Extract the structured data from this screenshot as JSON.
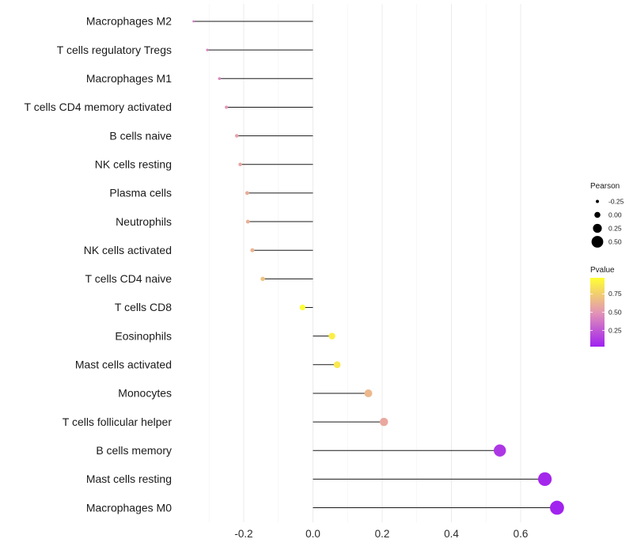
{
  "chart_data": {
    "type": "lollipop",
    "title": "",
    "xlabel": "",
    "ylabel": "",
    "xlim": [
      -0.35,
      0.72
    ],
    "xticks": [
      "-0.2",
      "0.0",
      "0.2",
      "0.4",
      "0.6"
    ],
    "grid": true,
    "legend_position": "right",
    "points": [
      {
        "cell": "Macrophages M2",
        "pearson": -0.345,
        "pvalue": 0.38
      },
      {
        "cell": "T cells regulatory  Tregs",
        "pearson": -0.305,
        "pvalue": 0.42
      },
      {
        "cell": "Macrophages M1",
        "pearson": -0.27,
        "pvalue": 0.45
      },
      {
        "cell": "T cells CD4 memory activated",
        "pearson": -0.25,
        "pvalue": 0.5
      },
      {
        "cell": "B cells naive",
        "pearson": -0.22,
        "pvalue": 0.55
      },
      {
        "cell": "NK cells resting",
        "pearson": -0.21,
        "pvalue": 0.57
      },
      {
        "cell": "Plasma cells",
        "pearson": -0.19,
        "pvalue": 0.6
      },
      {
        "cell": "Neutrophils",
        "pearson": -0.188,
        "pvalue": 0.61
      },
      {
        "cell": "NK cells activated",
        "pearson": -0.175,
        "pvalue": 0.64
      },
      {
        "cell": "T cells CD4 naive",
        "pearson": -0.145,
        "pvalue": 0.7
      },
      {
        "cell": "T cells CD8",
        "pearson": -0.03,
        "pvalue": 0.96
      },
      {
        "cell": "Eosinophils",
        "pearson": 0.055,
        "pvalue": 0.9
      },
      {
        "cell": "Mast cells activated",
        "pearson": 0.07,
        "pvalue": 0.87
      },
      {
        "cell": "Monocytes",
        "pearson": 0.16,
        "pvalue": 0.65
      },
      {
        "cell": "T cells follicular helper",
        "pearson": 0.205,
        "pvalue": 0.58
      },
      {
        "cell": "B cells memory",
        "pearson": 0.54,
        "pvalue": 0.12
      },
      {
        "cell": "Mast cells resting",
        "pearson": 0.67,
        "pvalue": 0.06
      },
      {
        "cell": "Macrophages M0",
        "pearson": 0.705,
        "pvalue": 0.04
      }
    ],
    "legend_size": {
      "title": "Pearson",
      "labels": [
        "-0.25",
        "0.00",
        "0.25",
        "0.50"
      ],
      "values": [
        -0.25,
        0.0,
        0.25,
        0.5
      ]
    },
    "legend_color": {
      "title": "Pvalue",
      "labels": [
        "0.75",
        "0.50",
        "0.25"
      ],
      "values": [
        0.75,
        0.5,
        0.25
      ],
      "range": [
        0.03,
        0.97
      ],
      "low_color": "#a020f0",
      "mid_color": "#e396b5",
      "high_color": "#ffff33"
    }
  }
}
